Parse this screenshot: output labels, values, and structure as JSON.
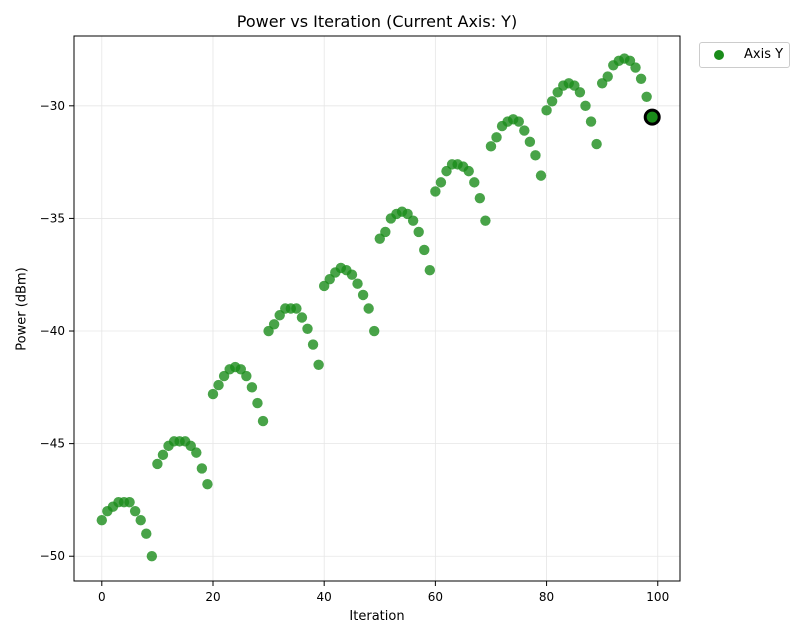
{
  "chart_data": {
    "type": "scatter",
    "title": "Power vs Iteration (Current Axis: Y)",
    "xlabel": "Iteration",
    "ylabel": "Power (dBm)",
    "xlim": [
      -5,
      104
    ],
    "ylim": [
      -51.1,
      -26.9
    ],
    "xticks": [
      0,
      20,
      40,
      60,
      80,
      100
    ],
    "yticks": [
      -50,
      -45,
      -40,
      -35,
      -30
    ],
    "ytick_labels": [
      "−50",
      "−45",
      "−40",
      "−35",
      "−30"
    ],
    "grid": true,
    "legend_position": "outside-top-right",
    "series": [
      {
        "name": "Axis Y",
        "color": "#1a8c1a",
        "x": [
          0,
          1,
          2,
          3,
          4,
          5,
          6,
          7,
          8,
          9,
          10,
          11,
          12,
          13,
          14,
          15,
          16,
          17,
          18,
          19,
          20,
          21,
          22,
          23,
          24,
          25,
          26,
          27,
          28,
          29,
          30,
          31,
          32,
          33,
          34,
          35,
          36,
          37,
          38,
          39,
          40,
          41,
          42,
          43,
          44,
          45,
          46,
          47,
          48,
          49,
          50,
          51,
          52,
          53,
          54,
          55,
          56,
          57,
          58,
          59,
          60,
          61,
          62,
          63,
          64,
          65,
          66,
          67,
          68,
          69,
          70,
          71,
          72,
          73,
          74,
          75,
          76,
          77,
          78,
          79,
          80,
          81,
          82,
          83,
          84,
          85,
          86,
          87,
          88,
          89,
          90,
          91,
          92,
          93,
          94,
          95,
          96,
          97,
          98,
          99
        ],
        "y": [
          -48.4,
          -48.0,
          -47.8,
          -47.6,
          -47.6,
          -47.6,
          -48.0,
          -48.4,
          -49.0,
          -50.0,
          -45.9,
          -45.5,
          -45.1,
          -44.9,
          -44.9,
          -44.9,
          -45.1,
          -45.4,
          -46.1,
          -46.8,
          -42.8,
          -42.4,
          -42.0,
          -41.7,
          -41.6,
          -41.7,
          -42.0,
          -42.5,
          -43.2,
          -44.0,
          -40.0,
          -39.7,
          -39.3,
          -39.0,
          -39.0,
          -39.0,
          -39.4,
          -39.9,
          -40.6,
          -41.5,
          -38.0,
          -37.7,
          -37.4,
          -37.2,
          -37.3,
          -37.5,
          -37.9,
          -38.4,
          -39.0,
          -40.0,
          -35.9,
          -35.6,
          -35.0,
          -34.8,
          -34.7,
          -34.8,
          -35.1,
          -35.6,
          -36.4,
          -37.3,
          -33.8,
          -33.4,
          -32.9,
          -32.6,
          -32.6,
          -32.7,
          -32.9,
          -33.4,
          -34.1,
          -35.1,
          -31.8,
          -31.4,
          -30.9,
          -30.7,
          -30.6,
          -30.7,
          -31.1,
          -31.6,
          -32.2,
          -33.1,
          -30.2,
          -29.8,
          -29.4,
          -29.1,
          -29.0,
          -29.1,
          -29.4,
          -30.0,
          -30.7,
          -31.7,
          -29.0,
          -28.7,
          -28.2,
          -28.0,
          -27.9,
          -28.0,
          -28.3,
          -28.8,
          -29.6,
          -30.5
        ]
      }
    ],
    "highlight": {
      "x": 99,
      "y": -30.5,
      "edgecolor": "#000000"
    }
  }
}
